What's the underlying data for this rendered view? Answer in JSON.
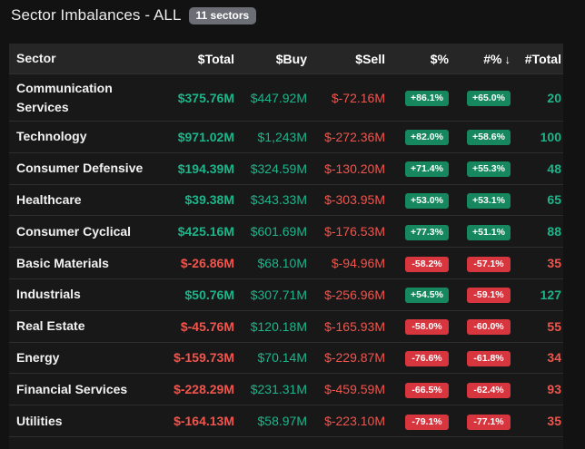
{
  "header": {
    "title": "Sector Imbalances - ALL",
    "badge": "11 sectors"
  },
  "columns": {
    "sector": "Sector",
    "total": "$Total",
    "buy": "$Buy",
    "sell": "$Sell",
    "pct": "$%",
    "hashpct": "#%",
    "sort_arrow": "↓",
    "hashtotal": "#Total"
  },
  "rows": [
    {
      "sector": "Communication Services",
      "total": "$375.76M",
      "buy": "$447.92M",
      "sell": "$-72.16M",
      "pct": "+86.1%",
      "hashpct": "+65.0%",
      "hashtotal": "20"
    },
    {
      "sector": "Technology",
      "total": "$971.02M",
      "buy": "$1,243M",
      "sell": "$-272.36M",
      "pct": "+82.0%",
      "hashpct": "+58.6%",
      "hashtotal": "100"
    },
    {
      "sector": "Consumer Defensive",
      "total": "$194.39M",
      "buy": "$324.59M",
      "sell": "$-130.20M",
      "pct": "+71.4%",
      "hashpct": "+55.3%",
      "hashtotal": "48"
    },
    {
      "sector": "Healthcare",
      "total": "$39.38M",
      "buy": "$343.33M",
      "sell": "$-303.95M",
      "pct": "+53.0%",
      "hashpct": "+53.1%",
      "hashtotal": "65"
    },
    {
      "sector": "Consumer Cyclical",
      "total": "$425.16M",
      "buy": "$601.69M",
      "sell": "$-176.53M",
      "pct": "+77.3%",
      "hashpct": "+51.1%",
      "hashtotal": "88"
    },
    {
      "sector": "Basic Materials",
      "total": "$-26.86M",
      "buy": "$68.10M",
      "sell": "$-94.96M",
      "pct": "-58.2%",
      "hashpct": "-57.1%",
      "hashtotal": "35"
    },
    {
      "sector": "Industrials",
      "total": "$50.76M",
      "buy": "$307.71M",
      "sell": "$-256.96M",
      "pct": "+54.5%",
      "hashpct": "-59.1%",
      "hashtotal": "127"
    },
    {
      "sector": "Real Estate",
      "total": "$-45.76M",
      "buy": "$120.18M",
      "sell": "$-165.93M",
      "pct": "-58.0%",
      "hashpct": "-60.0%",
      "hashtotal": "55"
    },
    {
      "sector": "Energy",
      "total": "$-159.73M",
      "buy": "$70.14M",
      "sell": "$-229.87M",
      "pct": "-76.6%",
      "hashpct": "-61.8%",
      "hashtotal": "34"
    },
    {
      "sector": "Financial Services",
      "total": "$-228.29M",
      "buy": "$231.31M",
      "sell": "$-459.59M",
      "pct": "-66.5%",
      "hashpct": "-62.4%",
      "hashtotal": "93"
    },
    {
      "sector": "Utilities",
      "total": "$-164.13M",
      "buy": "$58.97M",
      "sell": "$-223.10M",
      "pct": "-79.1%",
      "hashpct": "-77.1%",
      "hashtotal": "35"
    }
  ],
  "colors": {
    "positive": "#1db58a",
    "negative": "#f0554e",
    "positive_pill": "#16875f",
    "negative_pill": "#d8363f"
  }
}
